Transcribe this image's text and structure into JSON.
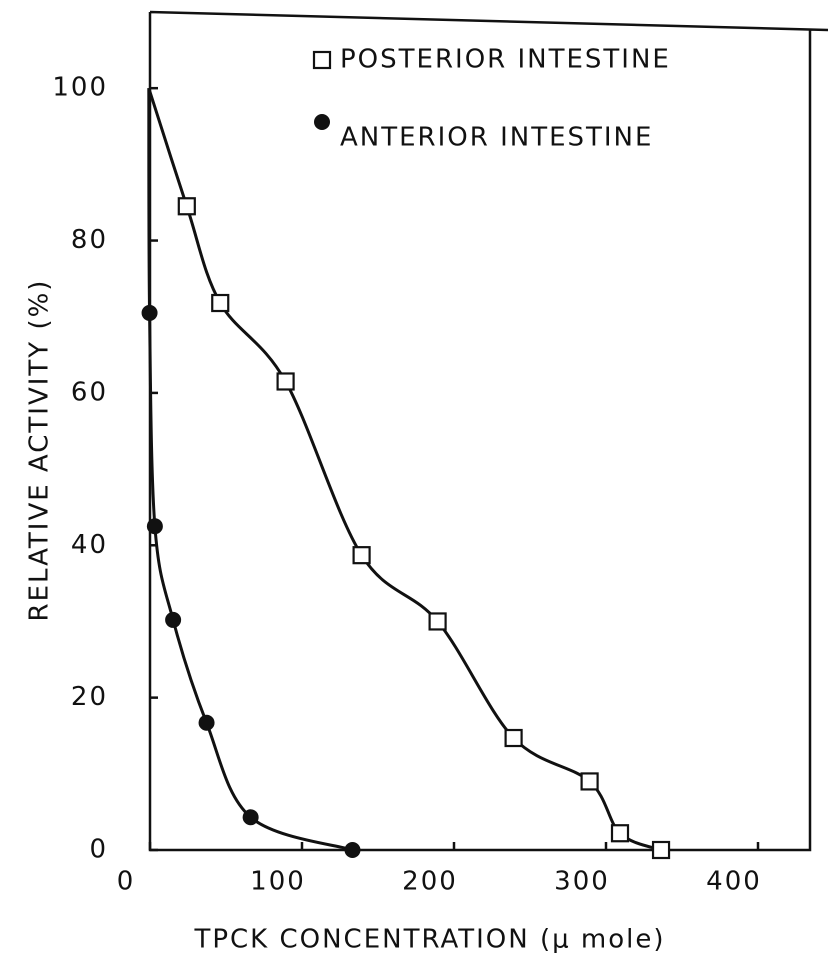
{
  "chart_data": {
    "type": "scatter",
    "xlabel": "TPCK CONCENTRATION (μ mole)",
    "ylabel": "RELATIVE ACTIVITY (%)",
    "xlim": [
      0,
      450
    ],
    "ylim": [
      0,
      110
    ],
    "xticks": [
      0,
      100,
      200,
      300,
      400
    ],
    "yticks": [
      0,
      20,
      40,
      60,
      80,
      100
    ],
    "legend": "top",
    "series": [
      {
        "name": "POSTERIOR INTESTINE",
        "marker": "square",
        "color": "#111111",
        "x": [
          15,
          40,
          62,
          105,
          155,
          205,
          255,
          305,
          325,
          352
        ],
        "values": [
          100,
          84.5,
          71.8,
          61.5,
          38.7,
          30,
          14.7,
          9,
          2.2,
          0
        ]
      },
      {
        "name": "ANTERIOR INTESTINE",
        "marker": "circle",
        "color": "#111111",
        "x": [
          15,
          15.5,
          19,
          31,
          53,
          82,
          149
        ],
        "values": [
          100,
          70.5,
          42.5,
          30.2,
          16.7,
          4.3,
          0
        ]
      }
    ]
  }
}
